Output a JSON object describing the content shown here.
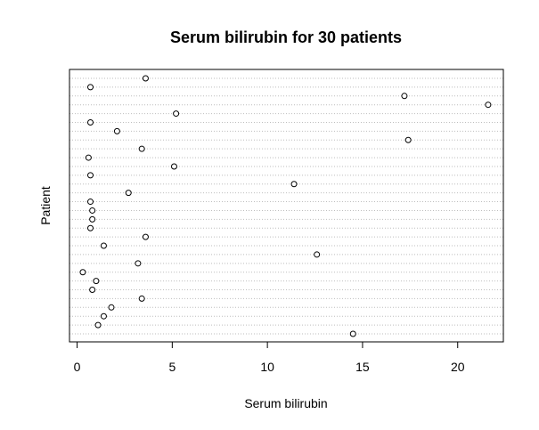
{
  "chart_data": {
    "type": "scatter",
    "title": "Serum bilirubin for 30 patients",
    "xlabel": "Serum bilirubin",
    "ylabel": "Patient",
    "xlim": [
      -0.4,
      22.4
    ],
    "x_ticks": [
      0,
      5,
      10,
      15,
      20
    ],
    "x_tick_labels": [
      "0",
      "5",
      "10",
      "15",
      "20"
    ],
    "grid": "dotted horizontal line per patient",
    "series": [
      {
        "values": [
          14.5,
          1.1,
          1.4,
          1.8,
          3.4,
          0.8,
          1.0,
          0.3,
          3.2,
          12.6,
          1.4,
          3.6,
          0.7,
          0.8,
          0.8,
          0.7,
          2.7,
          11.4,
          0.7,
          5.1,
          0.6,
          3.4,
          17.4,
          2.1,
          0.7,
          5.2,
          21.6,
          17.2,
          0.7,
          3.6
        ]
      }
    ]
  }
}
